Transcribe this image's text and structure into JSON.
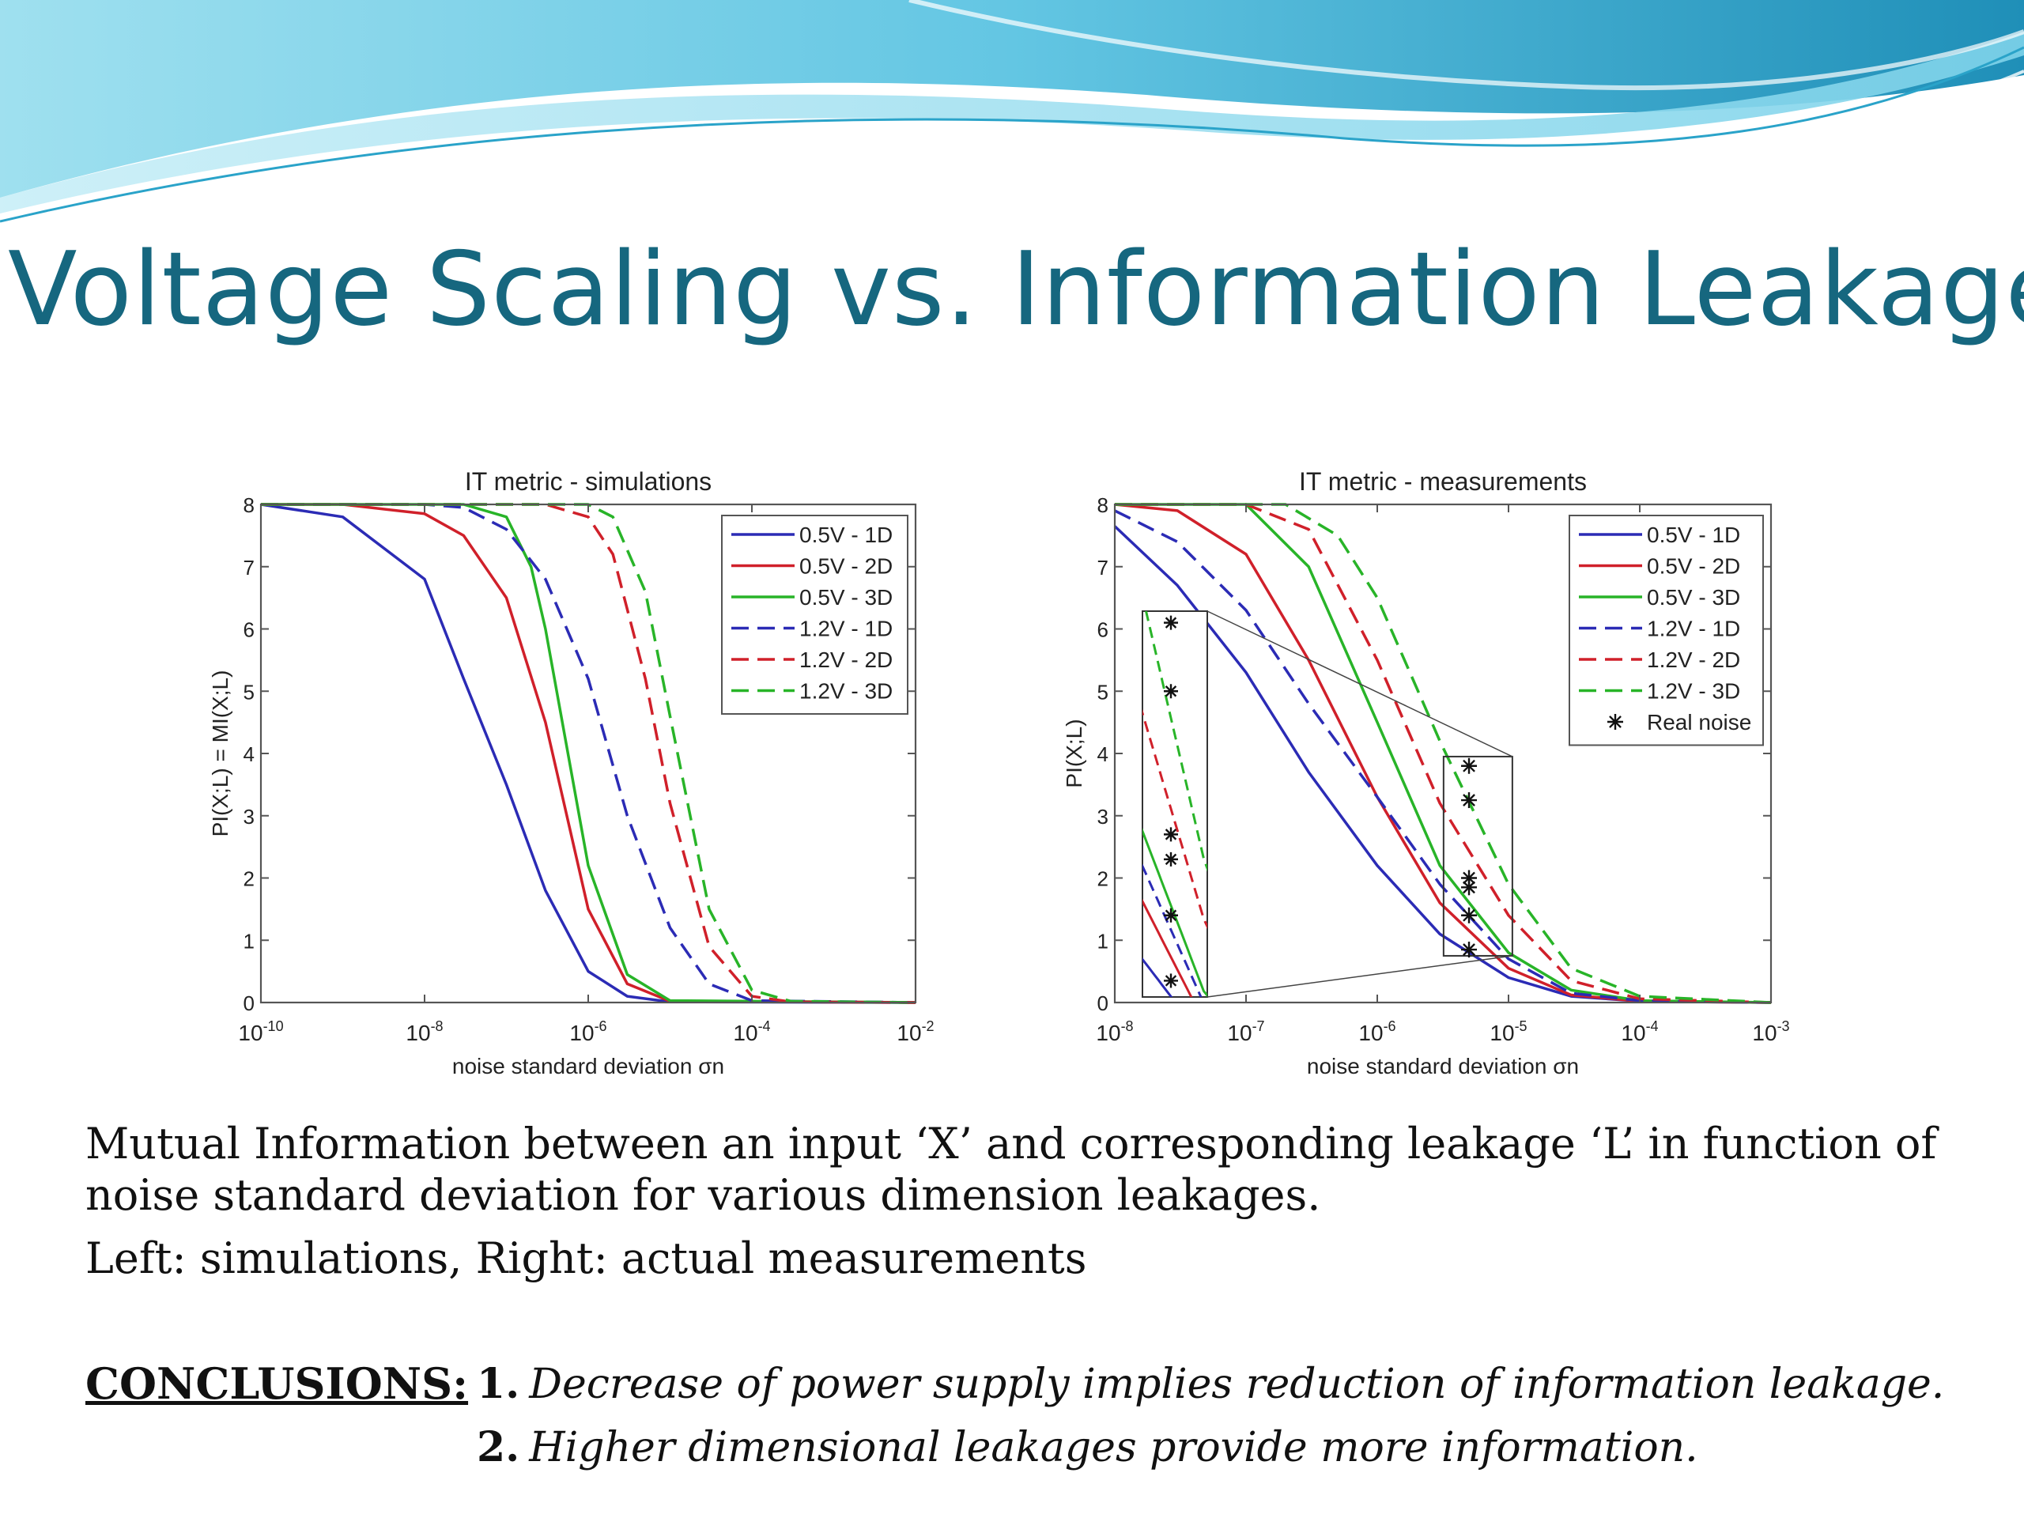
{
  "slide": {
    "title": "Voltage Scaling vs. Information Leakage",
    "title_color": "#16677f",
    "caption_lines": [
      "Mutual Information between an input ‘X’ and corresponding leakage ‘L’ in function of",
      "noise standard deviation for various dimension leakages.",
      "Left: simulations, Right: actual measurements"
    ],
    "conclusions_label": "CONCLUSIONS:",
    "conclusions": [
      {
        "num": "1.",
        "text": "Decrease of  power supply implies reduction of information leakage."
      },
      {
        "num": "2.",
        "text": "Higher dimensional leakages provide more information."
      }
    ],
    "accent_colors": {
      "wave_light": "#9fe0ef",
      "wave_mid": "#4fb9da",
      "wave_dark": "#1f8fb8"
    }
  },
  "chart_data": [
    {
      "type": "line",
      "title": "IT metric - simulations",
      "xlabel": "noise standard deviation σn",
      "ylabel": "PI(X;L) = MI(X;L)",
      "x_scale": "log",
      "xlim": [
        1e-10,
        0.01
      ],
      "ylim": [
        0,
        8
      ],
      "x_ticks": [
        -10,
        -8,
        -6,
        -4,
        -2
      ],
      "y_ticks": [
        0,
        1,
        2,
        3,
        4,
        5,
        6,
        7,
        8
      ],
      "legend_position": "top-right",
      "grid": false,
      "series": [
        {
          "name": "0.5V - 1D",
          "color": "#2b2bb5",
          "dash": "solid",
          "points": [
            [
              1e-10,
              8
            ],
            [
              1e-09,
              7.8
            ],
            [
              1e-08,
              6.8
            ],
            [
              3e-08,
              5.2
            ],
            [
              1e-07,
              3.5
            ],
            [
              3e-07,
              1.8
            ],
            [
              1e-06,
              0.5
            ],
            [
              3e-06,
              0.1
            ],
            [
              1e-05,
              0.01
            ],
            [
              0.01,
              0
            ]
          ]
        },
        {
          "name": "0.5V - 2D",
          "color": "#d0202a",
          "dash": "solid",
          "points": [
            [
              1e-10,
              8
            ],
            [
              1e-09,
              8
            ],
            [
              1e-08,
              7.85
            ],
            [
              3e-08,
              7.5
            ],
            [
              1e-07,
              6.5
            ],
            [
              3e-07,
              4.5
            ],
            [
              1e-06,
              1.5
            ],
            [
              3e-06,
              0.3
            ],
            [
              1e-05,
              0.02
            ],
            [
              0.01,
              0
            ]
          ]
        },
        {
          "name": "0.5V - 3D",
          "color": "#28b428",
          "dash": "solid",
          "points": [
            [
              1e-10,
              8
            ],
            [
              3e-08,
              8
            ],
            [
              1e-07,
              7.8
            ],
            [
              2e-07,
              7
            ],
            [
              3e-07,
              6
            ],
            [
              1e-06,
              2.2
            ],
            [
              3e-06,
              0.45
            ],
            [
              1e-05,
              0.03
            ],
            [
              0.01,
              0
            ]
          ]
        },
        {
          "name": "1.2V - 1D",
          "color": "#2b2bb5",
          "dash": "dashed",
          "points": [
            [
              1e-10,
              8
            ],
            [
              1e-08,
              8
            ],
            [
              3e-08,
              7.95
            ],
            [
              1e-07,
              7.6
            ],
            [
              3e-07,
              6.8
            ],
            [
              1e-06,
              5.2
            ],
            [
              3e-06,
              3
            ],
            [
              1e-05,
              1.2
            ],
            [
              3e-05,
              0.3
            ],
            [
              0.0001,
              0.03
            ],
            [
              0.01,
              0
            ]
          ]
        },
        {
          "name": "1.2V - 2D",
          "color": "#d0202a",
          "dash": "dashed",
          "points": [
            [
              1e-10,
              8
            ],
            [
              3e-07,
              8
            ],
            [
              1e-06,
              7.8
            ],
            [
              2e-06,
              7.2
            ],
            [
              5e-06,
              5.2
            ],
            [
              1e-05,
              3.2
            ],
            [
              3e-05,
              0.9
            ],
            [
              0.0001,
              0.1
            ],
            [
              0.0003,
              0.01
            ],
            [
              0.01,
              0
            ]
          ]
        },
        {
          "name": "1.2V - 3D",
          "color": "#28b428",
          "dash": "dashed",
          "points": [
            [
              1e-10,
              8
            ],
            [
              1e-06,
              8
            ],
            [
              2e-06,
              7.8
            ],
            [
              5e-06,
              6.6
            ],
            [
              1e-05,
              4.6
            ],
            [
              3e-05,
              1.5
            ],
            [
              0.0001,
              0.2
            ],
            [
              0.0003,
              0.02
            ],
            [
              0.01,
              0
            ]
          ]
        }
      ]
    },
    {
      "type": "line",
      "title": "IT metric - measurements",
      "xlabel": "noise standard deviation σn",
      "ylabel": "PI(X;L)",
      "x_scale": "log",
      "xlim": [
        1e-08,
        0.001
      ],
      "ylim": [
        0,
        8
      ],
      "x_ticks": [
        -8,
        -7,
        -6,
        -5,
        -4,
        -3
      ],
      "y_ticks": [
        0,
        1,
        2,
        3,
        4,
        5,
        6,
        7,
        8
      ],
      "legend_position": "top-right",
      "grid": false,
      "series": [
        {
          "name": "0.5V - 1D",
          "color": "#2b2bb5",
          "dash": "solid",
          "points": [
            [
              1e-08,
              7.65
            ],
            [
              3e-08,
              6.7
            ],
            [
              1e-07,
              5.3
            ],
            [
              3e-07,
              3.7
            ],
            [
              1e-06,
              2.2
            ],
            [
              3e-06,
              1.1
            ],
            [
              1e-05,
              0.4
            ],
            [
              3e-05,
              0.1
            ],
            [
              0.0001,
              0.02
            ],
            [
              0.001,
              0
            ]
          ]
        },
        {
          "name": "0.5V - 2D",
          "color": "#d0202a",
          "dash": "solid",
          "points": [
            [
              1e-08,
              8
            ],
            [
              3e-08,
              7.9
            ],
            [
              1e-07,
              7.2
            ],
            [
              3e-07,
              5.5
            ],
            [
              1e-06,
              3.3
            ],
            [
              3e-06,
              1.6
            ],
            [
              1e-05,
              0.55
            ],
            [
              3e-05,
              0.12
            ],
            [
              0.0001,
              0.02
            ],
            [
              0.001,
              0
            ]
          ]
        },
        {
          "name": "0.5V - 3D",
          "color": "#28b428",
          "dash": "solid",
          "points": [
            [
              1e-08,
              8
            ],
            [
              1e-07,
              8
            ],
            [
              3e-07,
              7
            ],
            [
              1e-06,
              4.5
            ],
            [
              3e-06,
              2.2
            ],
            [
              1e-05,
              0.8
            ],
            [
              3e-05,
              0.2
            ],
            [
              0.0001,
              0.03
            ],
            [
              0.001,
              0
            ]
          ]
        },
        {
          "name": "1.2V - 1D",
          "color": "#2b2bb5",
          "dash": "dashed",
          "points": [
            [
              1e-08,
              7.9
            ],
            [
              3e-08,
              7.4
            ],
            [
              1e-07,
              6.3
            ],
            [
              3e-07,
              4.8
            ],
            [
              1e-06,
              3.3
            ],
            [
              3e-06,
              1.9
            ],
            [
              1e-05,
              0.7
            ],
            [
              3e-05,
              0.15
            ],
            [
              0.0001,
              0.03
            ],
            [
              0.001,
              0
            ]
          ]
        },
        {
          "name": "1.2V - 2D",
          "color": "#d0202a",
          "dash": "dashed",
          "points": [
            [
              1e-08,
              8
            ],
            [
              1e-07,
              8
            ],
            [
              3e-07,
              7.6
            ],
            [
              1e-06,
              5.5
            ],
            [
              3e-06,
              3.2
            ],
            [
              1e-05,
              1.4
            ],
            [
              3e-05,
              0.35
            ],
            [
              0.0001,
              0.06
            ],
            [
              0.001,
              0
            ]
          ]
        },
        {
          "name": "1.2V - 3D",
          "color": "#28b428",
          "dash": "dashed",
          "points": [
            [
              1e-08,
              8
            ],
            [
              2e-07,
              8
            ],
            [
              5e-07,
              7.5
            ],
            [
              1e-06,
              6.5
            ],
            [
              3e-06,
              4.2
            ],
            [
              1e-05,
              1.9
            ],
            [
              3e-05,
              0.55
            ],
            [
              0.0001,
              0.1
            ],
            [
              0.001,
              0
            ]
          ]
        },
        {
          "name": "Real noise",
          "color": "#111111",
          "dash": "marker",
          "points": [
            [
              5e-06,
              3.8
            ],
            [
              5e-06,
              3.25
            ],
            [
              5e-06,
              2
            ],
            [
              5e-06,
              1.85
            ],
            [
              5e-06,
              1.4
            ],
            [
              5e-06,
              0.85
            ]
          ]
        }
      ],
      "inset": {
        "x_range": [
          3.2e-06,
          1.07e-05
        ],
        "y_range": [
          0.75,
          3.95
        ]
      }
    }
  ]
}
